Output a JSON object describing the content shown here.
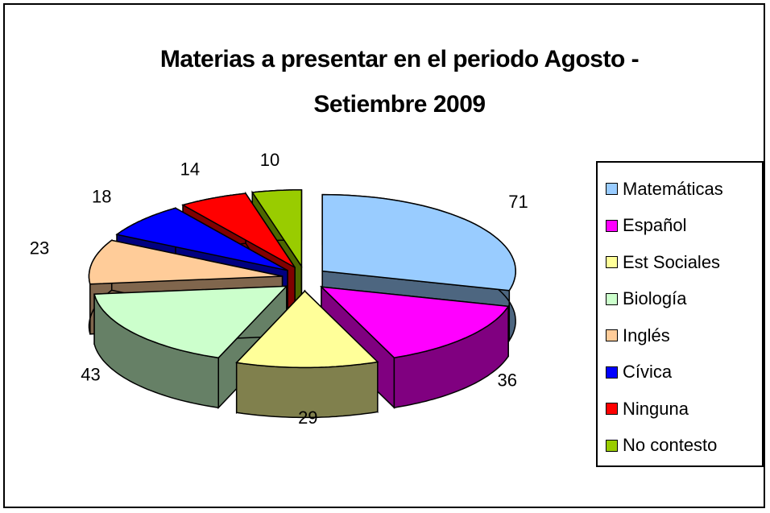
{
  "chart_data": {
    "type": "pie",
    "title": "Materias a presentar en el periodo Agosto - Setiembre 2009",
    "categories": [
      "Matemáticas",
      "Español",
      "Est Sociales",
      "Biología",
      "Inglés",
      "Cívica",
      "Ninguna",
      "No contesto"
    ],
    "values": [
      71,
      36,
      29,
      43,
      23,
      18,
      14,
      10
    ],
    "colors": [
      "#99ccff",
      "#ff00ff",
      "#ffff99",
      "#ccffcc",
      "#ffcc99",
      "#0000ff",
      "#ff0000",
      "#99cc00"
    ],
    "legend": "right"
  }
}
